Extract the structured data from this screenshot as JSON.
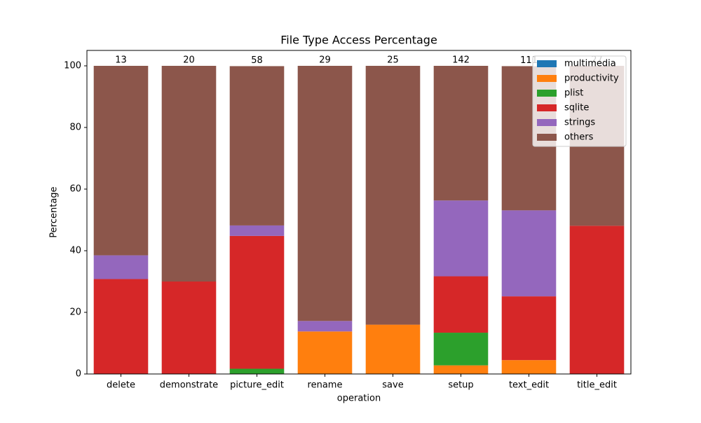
{
  "chart_data": {
    "type": "stacked_bar",
    "title": "File Type Access Percentage",
    "x_label": "operation",
    "y_label": "Percentage",
    "categories": [
      "delete",
      "demonstrate",
      "picture_edit",
      "rename",
      "save",
      "setup",
      "text_edit",
      "title_edit"
    ],
    "series": [
      {
        "name": "multimedia",
        "color": "#1f77b4",
        "values": [
          0,
          0,
          0,
          0,
          0,
          0,
          0,
          0
        ]
      },
      {
        "name": "productivity",
        "color": "#ff7f0e",
        "values": [
          0,
          0,
          0,
          13.8,
          16,
          2.8,
          4.5,
          0
        ]
      },
      {
        "name": "plist",
        "color": "#2ca02c",
        "values": [
          0,
          0,
          1.7,
          0,
          0,
          10.6,
          0,
          0
        ]
      },
      {
        "name": "sqlite",
        "color": "#d62728",
        "values": [
          30.8,
          30,
          43.1,
          0,
          0,
          18.3,
          20.7,
          48.1
        ]
      },
      {
        "name": "strings",
        "color": "#9467bd",
        "values": [
          7.7,
          0,
          3.4,
          3.4,
          0,
          24.6,
          27.9,
          0
        ]
      },
      {
        "name": "others",
        "color": "#8c564b",
        "values": [
          61.5,
          70,
          51.7,
          82.8,
          84,
          43.7,
          46.8,
          51.9
        ]
      }
    ],
    "bar_labels": [
      13,
      20,
      58,
      29,
      25,
      142,
      111,
      27
    ],
    "ylim": [
      0,
      105
    ],
    "yticks": [
      0,
      20,
      40,
      60,
      80,
      100
    ],
    "legend": "upper right"
  }
}
